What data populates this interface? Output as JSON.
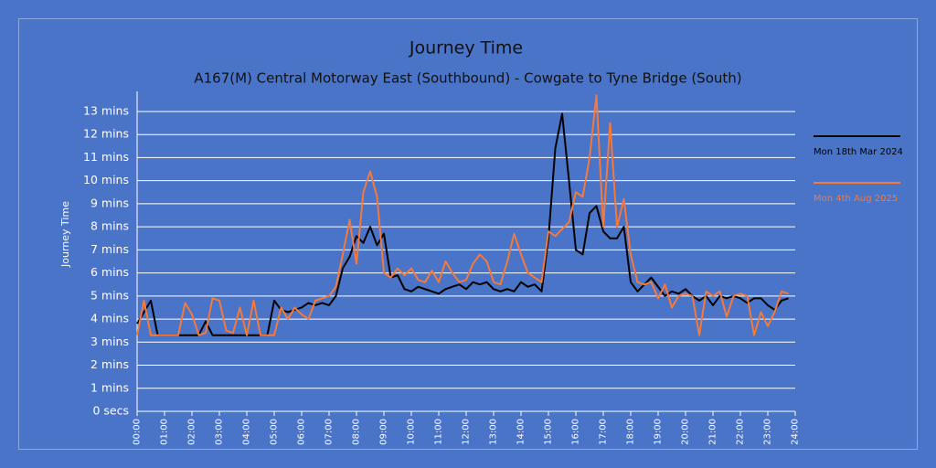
{
  "chart_data": {
    "type": "line",
    "title": "Journey Time",
    "subtitle": "A167(M) Central Motorway East (Southbound) - Cowgate to Tyne Bridge (South)",
    "y_label": "Journey Time",
    "legend": "right",
    "grid": true,
    "x": [
      0,
      0.25,
      0.5,
      0.75,
      1,
      1.25,
      1.5,
      1.75,
      2,
      2.25,
      2.5,
      2.75,
      3,
      3.25,
      3.5,
      3.75,
      4,
      4.25,
      4.5,
      4.75,
      5,
      5.25,
      5.5,
      5.75,
      6,
      6.25,
      6.5,
      6.75,
      7,
      7.25,
      7.5,
      7.75,
      8,
      8.25,
      8.5,
      8.75,
      9,
      9.25,
      9.5,
      9.75,
      10,
      10.25,
      10.5,
      10.75,
      11,
      11.25,
      11.5,
      11.75,
      12,
      12.25,
      12.5,
      12.75,
      13,
      13.25,
      13.5,
      13.75,
      14,
      14.25,
      14.5,
      14.75,
      15,
      15.25,
      15.5,
      15.75,
      16,
      16.25,
      16.5,
      16.75,
      17,
      17.25,
      17.5,
      17.75,
      18,
      18.25,
      18.5,
      18.75,
      19,
      19.25,
      19.5,
      19.75,
      20,
      20.25,
      20.5,
      20.75,
      21,
      21.25,
      21.5,
      21.75,
      22,
      22.25,
      22.5,
      22.75,
      23,
      23.25,
      23.5,
      23.75
    ],
    "series": [
      {
        "name": "Mon 18th Mar 2024",
        "color": "#000000",
        "values": [
          3.8,
          4.3,
          4.8,
          3.3,
          3.3,
          3.3,
          3.3,
          3.3,
          3.3,
          3.3,
          3.9,
          3.3,
          3.3,
          3.3,
          3.3,
          3.3,
          3.3,
          3.3,
          3.3,
          3.3,
          4.8,
          4.4,
          4.3,
          4.4,
          4.5,
          4.7,
          4.6,
          4.7,
          4.6,
          5.0,
          6.2,
          6.7,
          7.6,
          7.3,
          8.0,
          7.2,
          7.7,
          5.8,
          5.9,
          5.3,
          5.2,
          5.4,
          5.3,
          5.2,
          5.1,
          5.3,
          5.4,
          5.5,
          5.3,
          5.6,
          5.5,
          5.6,
          5.3,
          5.2,
          5.3,
          5.2,
          5.6,
          5.4,
          5.5,
          5.2,
          7.5,
          11.4,
          12.9,
          10.0,
          7.0,
          6.8,
          8.6,
          8.9,
          7.8,
          7.5,
          7.5,
          8.0,
          5.6,
          5.2,
          5.5,
          5.8,
          5.4,
          5.0,
          5.2,
          5.1,
          5.3,
          5.0,
          4.8,
          5.0,
          4.6,
          5.0,
          4.9,
          5.0,
          4.9,
          4.7,
          4.9,
          4.9,
          4.6,
          4.4,
          4.8,
          4.9
        ]
      },
      {
        "name": "Mon 4th Aug 2025",
        "color": "#f4793b",
        "values": [
          3.3,
          4.8,
          3.3,
          3.3,
          3.3,
          3.3,
          3.3,
          4.7,
          4.2,
          3.3,
          3.4,
          4.9,
          4.8,
          3.5,
          3.4,
          4.5,
          3.3,
          4.8,
          3.3,
          3.3,
          3.3,
          4.5,
          4.0,
          4.5,
          4.2,
          4.0,
          4.8,
          4.9,
          5.0,
          5.4,
          6.8,
          8.3,
          6.4,
          9.5,
          10.4,
          9.3,
          6.0,
          5.8,
          6.2,
          5.9,
          6.2,
          5.7,
          5.6,
          6.1,
          5.6,
          6.5,
          6.0,
          5.6,
          5.7,
          6.4,
          6.8,
          6.5,
          5.6,
          5.5,
          6.5,
          7.7,
          6.8,
          6.0,
          5.8,
          5.6,
          7.8,
          7.6,
          7.9,
          8.2,
          9.5,
          9.3,
          11.0,
          13.7,
          8.0,
          12.5,
          8.0,
          9.2,
          6.8,
          5.6,
          5.5,
          5.6,
          4.9,
          5.5,
          4.5,
          5.0,
          5.1,
          5.0,
          3.3,
          5.2,
          5.0,
          5.2,
          4.1,
          5.0,
          5.1,
          5.0,
          3.3,
          4.3,
          3.7,
          4.3,
          5.2,
          5.1
        ]
      }
    ],
    "xlim": [
      0,
      24
    ],
    "xticks": [
      {
        "value": 0,
        "label": "00:00"
      },
      {
        "value": 1,
        "label": "01:00"
      },
      {
        "value": 2,
        "label": "02:00"
      },
      {
        "value": 3,
        "label": "03:00"
      },
      {
        "value": 4,
        "label": "04:00"
      },
      {
        "value": 5,
        "label": "05:00"
      },
      {
        "value": 6,
        "label": "06:00"
      },
      {
        "value": 7,
        "label": "07:00"
      },
      {
        "value": 8,
        "label": "08:00"
      },
      {
        "value": 9,
        "label": "09:00"
      },
      {
        "value": 10,
        "label": "10:00"
      },
      {
        "value": 11,
        "label": "11:00"
      },
      {
        "value": 12,
        "label": "12:00"
      },
      {
        "value": 13,
        "label": "13:00"
      },
      {
        "value": 14,
        "label": "14:00"
      },
      {
        "value": 15,
        "label": "15:00"
      },
      {
        "value": 16,
        "label": "16:00"
      },
      {
        "value": 17,
        "label": "17:00"
      },
      {
        "value": 18,
        "label": "18:00"
      },
      {
        "value": 19,
        "label": "19:00"
      },
      {
        "value": 20,
        "label": "20:00"
      },
      {
        "value": 21,
        "label": "21:00"
      },
      {
        "value": 22,
        "label": "22:00"
      },
      {
        "value": 23,
        "label": "23:00"
      },
      {
        "value": 24,
        "label": "24:00"
      }
    ],
    "ylim": [
      0,
      13.87
    ],
    "yticks": [
      {
        "value": 0,
        "label": "0 secs"
      },
      {
        "value": 1,
        "label": "1 mins"
      },
      {
        "value": 2,
        "label": "2 mins"
      },
      {
        "value": 3,
        "label": "3 mins"
      },
      {
        "value": 4,
        "label": "4 mins"
      },
      {
        "value": 5,
        "label": "5 mins"
      },
      {
        "value": 6,
        "label": "6 mins"
      },
      {
        "value": 7,
        "label": "7 mins"
      },
      {
        "value": 8,
        "label": "8 mins"
      },
      {
        "value": 9,
        "label": "9 mins"
      },
      {
        "value": 10,
        "label": "10 mins"
      },
      {
        "value": 11,
        "label": "11 mins"
      },
      {
        "value": 12,
        "label": "12 mins"
      },
      {
        "value": 13,
        "label": "13 mins"
      }
    ]
  }
}
